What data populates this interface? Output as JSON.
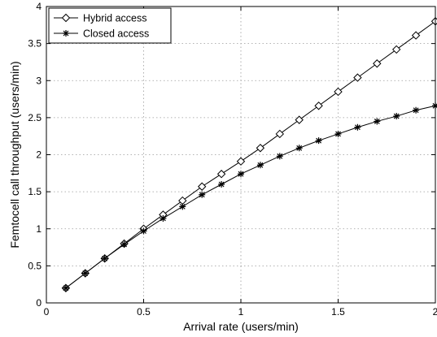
{
  "chart_data": {
    "type": "line",
    "xlabel": "Arrival rate (users/min)",
    "ylabel": "Femtocell call throughput (users/min)",
    "xlim": [
      0,
      2
    ],
    "ylim": [
      0,
      4
    ],
    "xticks": [
      0,
      0.5,
      1,
      1.5,
      2
    ],
    "yticks": [
      0,
      0.5,
      1,
      1.5,
      2,
      2.5,
      3,
      3.5,
      4
    ],
    "xtick_labels": [
      "0",
      "0.5",
      "1",
      "1.5",
      "2"
    ],
    "ytick_labels": [
      "0",
      "0.5",
      "1",
      "1.5",
      "2",
      "2.5",
      "3",
      "3.5",
      "4"
    ],
    "grid": true,
    "legend_position": "top-left",
    "x": [
      0.1,
      0.2,
      0.3,
      0.4,
      0.5,
      0.6,
      0.7,
      0.8,
      0.9,
      1.0,
      1.1,
      1.2,
      1.3,
      1.4,
      1.5,
      1.6,
      1.7,
      1.8,
      1.9,
      2.0
    ],
    "series": [
      {
        "name": "Hybrid access",
        "marker": "diamond",
        "color": "#000000",
        "values": [
          0.2,
          0.4,
          0.6,
          0.8,
          1.0,
          1.19,
          1.38,
          1.57,
          1.74,
          1.91,
          2.09,
          2.28,
          2.47,
          2.66,
          2.85,
          3.04,
          3.23,
          3.42,
          3.61,
          3.8
        ]
      },
      {
        "name": "Closed access",
        "marker": "star",
        "color": "#000000",
        "values": [
          0.2,
          0.4,
          0.6,
          0.79,
          0.97,
          1.14,
          1.3,
          1.46,
          1.6,
          1.74,
          1.86,
          1.98,
          2.09,
          2.19,
          2.28,
          2.37,
          2.45,
          2.52,
          2.6,
          2.66
        ]
      }
    ]
  }
}
